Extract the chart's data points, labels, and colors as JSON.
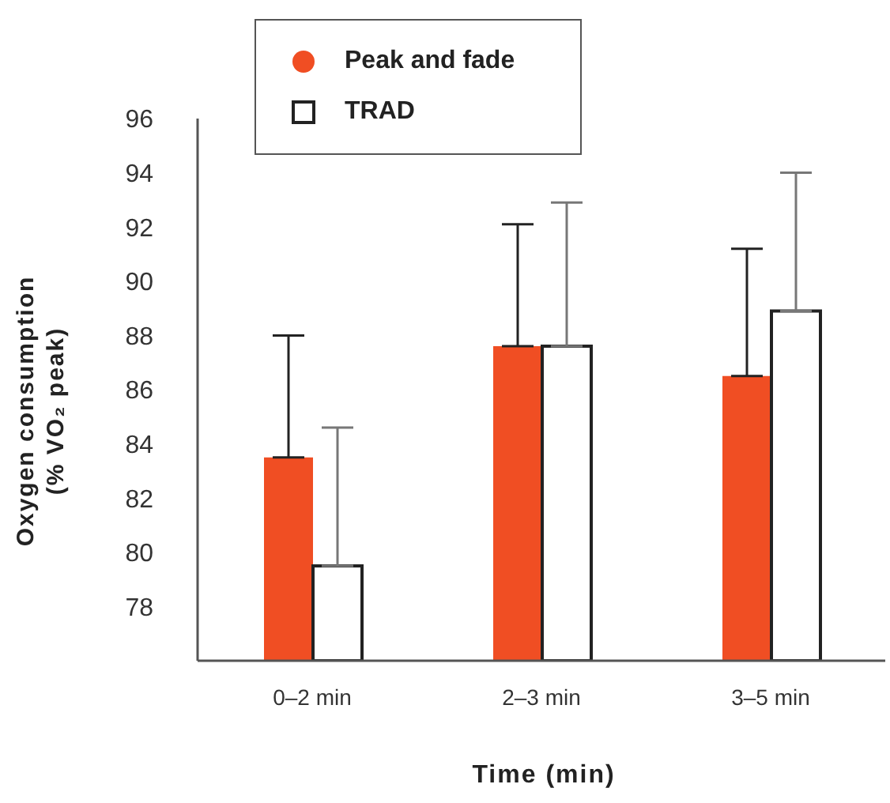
{
  "chart_data": {
    "type": "bar",
    "xlabel": "Time (min)",
    "ylabel": "Oxygen consumption\n(% VO₂ peak)",
    "categories": [
      "0–2 min",
      "2–3 min",
      "3–5 min"
    ],
    "series": [
      {
        "name": "Peak and fade",
        "color": "#f04e23",
        "values": [
          83.5,
          87.6,
          86.5
        ],
        "errors": [
          [
            83.5,
            88.0
          ],
          [
            87.6,
            92.1
          ],
          [
            86.5,
            91.2
          ]
        ]
      },
      {
        "name": "TRAD",
        "color": "#ffffff",
        "values": [
          79.5,
          87.6,
          88.9
        ],
        "errors": [
          [
            79.5,
            84.6
          ],
          [
            87.6,
            92.9
          ],
          [
            88.9,
            94.0
          ]
        ]
      }
    ],
    "ylim": [
      76,
      96
    ],
    "yticks": [
      78,
      80,
      82,
      84,
      86,
      88,
      90,
      92,
      94,
      96
    ],
    "grid": false,
    "legend": "top"
  }
}
